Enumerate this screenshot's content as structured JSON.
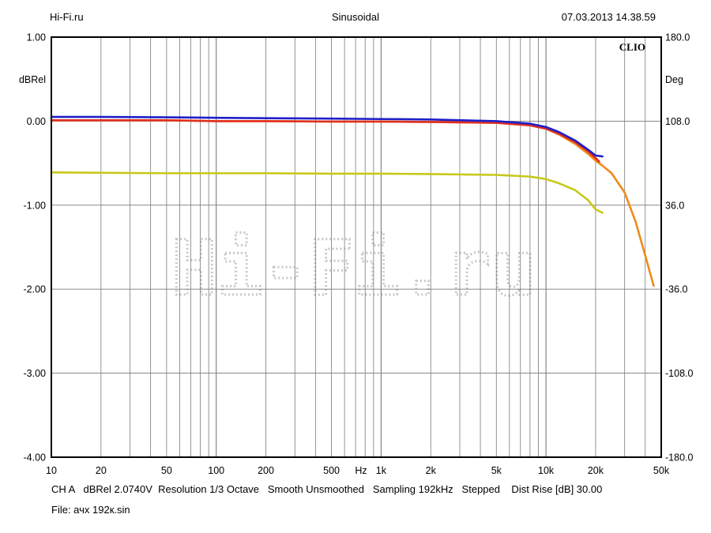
{
  "header": {
    "left": "Hi-Fi.ru",
    "center": "Sinusoidal",
    "right": "07.03.2013 14.38.59"
  },
  "brand": "CLIO",
  "watermark": "Hi-Fi.ru",
  "footer": {
    "info": "CH A   dBRel 2.0740V  Resolution 1/3 Octave   Smooth Unsmoothed   Sampling 192kHz   Stepped    Dist Rise [dB] 30.00",
    "file": "File: ачх 192к.sin"
  },
  "colors": {
    "blue": "#1f1fc8",
    "red": "#e03020",
    "orange": "#f08a1c",
    "yellow": "#c8c81a",
    "grid": "#7a7a7a"
  },
  "chart_data": {
    "type": "line",
    "x_scale": "log",
    "xlim": [
      10,
      50000
    ],
    "ylim": [
      -4.0,
      1.0
    ],
    "y2lim": [
      -180.0,
      180.0
    ],
    "ylabel": "dBRel",
    "y2label": "Deg",
    "x_unit_label": "Hz",
    "grid": true,
    "x_tick_labels": [
      {
        "v": 10,
        "t": "10"
      },
      {
        "v": 20,
        "t": "20"
      },
      {
        "v": 50,
        "t": "50"
      },
      {
        "v": 100,
        "t": "100"
      },
      {
        "v": 200,
        "t": "200"
      },
      {
        "v": 500,
        "t": "500"
      },
      {
        "v": 1000,
        "t": "1k"
      },
      {
        "v": 2000,
        "t": "2k"
      },
      {
        "v": 5000,
        "t": "5k"
      },
      {
        "v": 10000,
        "t": "10k"
      },
      {
        "v": 20000,
        "t": "20k"
      },
      {
        "v": 50000,
        "t": "50k"
      }
    ],
    "y_tick_labels": [
      "1.00",
      "0.00",
      "-1.00",
      "-2.00",
      "-3.00",
      "-4.00"
    ],
    "y_ticks": [
      1,
      0,
      -1,
      -2,
      -3,
      -4
    ],
    "y2_tick_labels": [
      "180.0",
      "108.0",
      "36.0",
      "-36.0",
      "-108.0",
      "-180.0"
    ],
    "series": [
      {
        "color_key": "yellow",
        "x": [
          10,
          20,
          50,
          100,
          200,
          500,
          1000,
          2000,
          5000,
          8000,
          10000,
          12000,
          15000,
          18000,
          20000,
          22000
        ],
        "y": [
          -0.61,
          -0.615,
          -0.62,
          -0.62,
          -0.62,
          -0.625,
          -0.625,
          -0.63,
          -0.64,
          -0.66,
          -0.69,
          -0.74,
          -0.82,
          -0.94,
          -1.05,
          -1.09
        ]
      },
      {
        "color_key": "orange",
        "x": [
          10,
          20,
          50,
          100,
          200,
          500,
          1000,
          2000,
          5000,
          8000,
          10000,
          12000,
          15000,
          18000,
          20000,
          22000,
          25000,
          30000,
          35000,
          40000,
          45000
        ],
        "y": [
          0.01,
          0.01,
          0.01,
          0.0,
          0.0,
          -0.005,
          -0.005,
          -0.01,
          -0.02,
          -0.05,
          -0.09,
          -0.16,
          -0.27,
          -0.39,
          -0.47,
          -0.53,
          -0.62,
          -0.85,
          -1.2,
          -1.6,
          -1.96
        ]
      },
      {
        "color_key": "red",
        "x": [
          10,
          20,
          50,
          100,
          200,
          500,
          1000,
          2000,
          5000,
          8000,
          10000,
          12000,
          15000,
          18000,
          20000,
          21000
        ],
        "y": [
          0.01,
          0.01,
          0.01,
          0.0,
          0.0,
          -0.005,
          -0.005,
          -0.01,
          -0.02,
          -0.05,
          -0.09,
          -0.15,
          -0.25,
          -0.36,
          -0.44,
          -0.48
        ]
      },
      {
        "color_key": "blue",
        "x": [
          10,
          20,
          50,
          100,
          200,
          500,
          1000,
          2000,
          5000,
          8000,
          10000,
          12000,
          15000,
          18000,
          20000,
          22000
        ],
        "y": [
          0.05,
          0.05,
          0.045,
          0.04,
          0.035,
          0.03,
          0.025,
          0.02,
          0.0,
          -0.03,
          -0.07,
          -0.13,
          -0.23,
          -0.34,
          -0.41,
          -0.42
        ]
      }
    ]
  }
}
